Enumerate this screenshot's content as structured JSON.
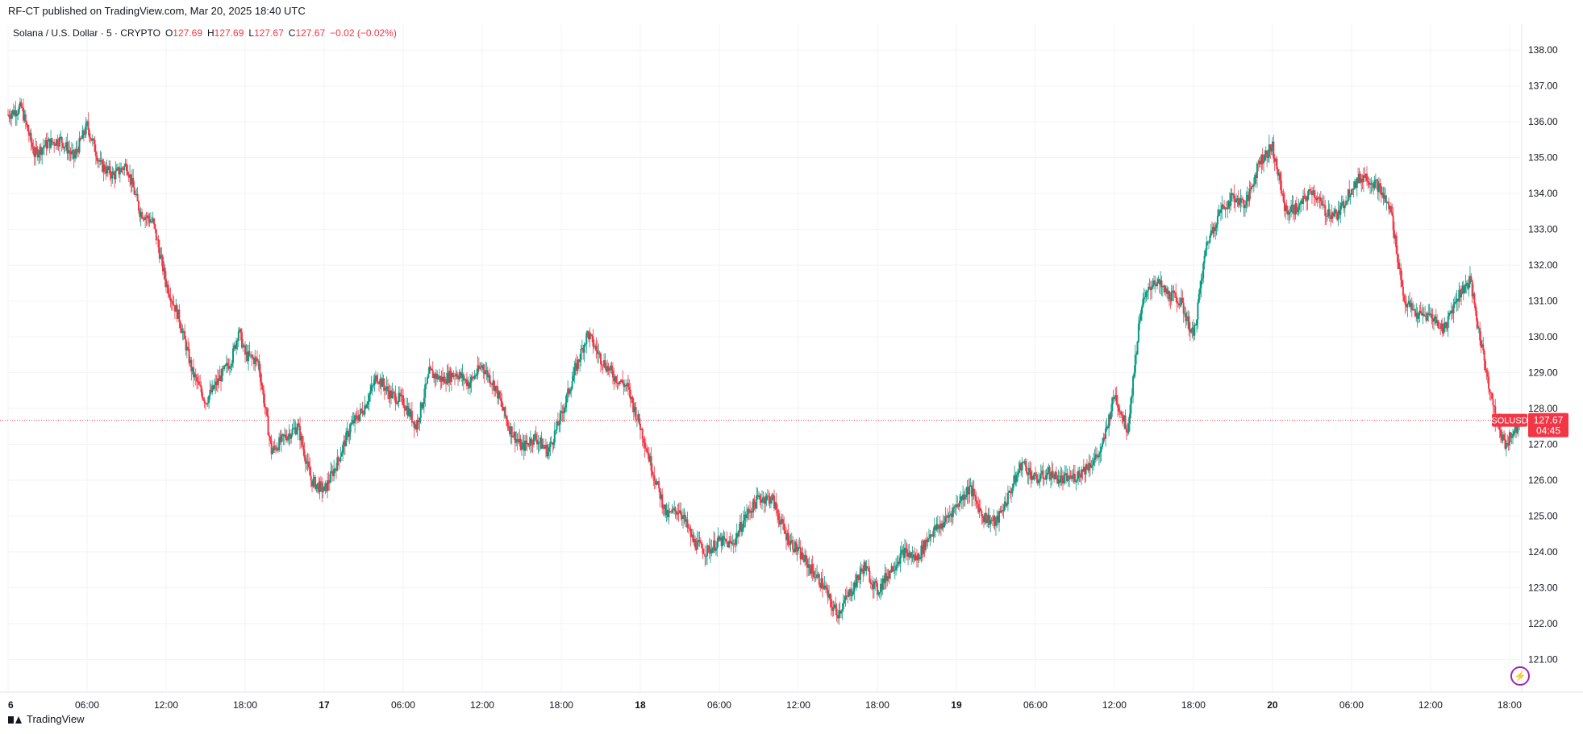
{
  "header": {
    "published": "RF-CT published on TradingView.com, Mar 20, 2025 18:40 UTC"
  },
  "legend": {
    "symbol": "Solana / U.S. Dollar · 5 · CRYPTO",
    "o_label": "O",
    "o_value": "127.69",
    "h_label": "H",
    "h_value": "127.69",
    "l_label": "L",
    "l_value": "127.67",
    "c_label": "C",
    "c_value": "127.67",
    "change": "−0.02 (−0.02%)"
  },
  "price_badge": {
    "ticker": "SOLUSD",
    "price": "127.67",
    "countdown": "04:45"
  },
  "footer": {
    "brand": "TradingView"
  },
  "colors": {
    "up": "#089981",
    "down": "#f23645",
    "grid": "#f0f3fa",
    "axis_text": "#131722",
    "price_line": "#f23645"
  },
  "chart_data": {
    "type": "candlestick",
    "interval": "5",
    "ylim": [
      120.4,
      138.5
    ],
    "y_ticks": [
      121,
      122,
      123,
      124,
      125,
      126,
      127,
      128,
      129,
      130,
      131,
      132,
      133,
      134,
      135,
      136,
      137,
      138
    ],
    "y_tick_labels": [
      "121.00",
      "122.00",
      "123.00",
      "124.00",
      "125.00",
      "126.00",
      "127.00",
      "128.00",
      "129.00",
      "130.00",
      "131.00",
      "132.00",
      "133.00",
      "134.00",
      "135.00",
      "136.00",
      "137.00",
      "138.00"
    ],
    "x_tick_labels": [
      "6",
      "06:00",
      "12:00",
      "18:00",
      "17",
      "06:00",
      "12:00",
      "18:00",
      "18",
      "06:00",
      "12:00",
      "18:00",
      "19",
      "06:00",
      "12:00",
      "18:00",
      "20",
      "06:00",
      "12:00",
      "18:00"
    ],
    "x_ticks_hours": [
      0,
      6,
      12,
      18,
      24,
      30,
      36,
      42,
      48,
      54,
      60,
      66,
      72,
      78,
      84,
      90,
      96,
      102,
      108,
      114
    ],
    "x_range_hours": [
      0,
      114.8
    ],
    "last_price": 127.67,
    "close_path": [
      [
        0,
        136.2
      ],
      [
        1,
        136.4
      ],
      [
        2,
        135.1
      ],
      [
        3,
        135.4
      ],
      [
        4,
        135.5
      ],
      [
        5,
        135.0
      ],
      [
        6,
        135.9
      ],
      [
        7,
        134.8
      ],
      [
        8,
        134.5
      ],
      [
        9,
        134.8
      ],
      [
        10,
        133.5
      ],
      [
        11,
        133.2
      ],
      [
        12,
        131.5
      ],
      [
        13,
        130.5
      ],
      [
        14,
        129.0
      ],
      [
        15,
        128.2
      ],
      [
        16,
        128.8
      ],
      [
        17,
        129.4
      ],
      [
        17.5,
        130.2
      ],
      [
        18,
        129.5
      ],
      [
        19,
        129.3
      ],
      [
        20,
        126.8
      ],
      [
        21,
        127.2
      ],
      [
        22,
        127.5
      ],
      [
        23,
        126.0
      ],
      [
        24,
        125.7
      ],
      [
        25,
        126.5
      ],
      [
        26,
        127.5
      ],
      [
        27,
        128.0
      ],
      [
        28,
        128.9
      ],
      [
        29,
        128.4
      ],
      [
        30,
        128.2
      ],
      [
        31,
        127.5
      ],
      [
        32,
        129.0
      ],
      [
        33,
        128.8
      ],
      [
        34,
        129.0
      ],
      [
        35,
        128.7
      ],
      [
        36,
        129.2
      ],
      [
        37,
        128.6
      ],
      [
        38,
        127.5
      ],
      [
        39,
        126.9
      ],
      [
        40,
        127.2
      ],
      [
        41,
        126.8
      ],
      [
        42,
        127.8
      ],
      [
        43,
        129.0
      ],
      [
        44,
        130.1
      ],
      [
        45,
        129.4
      ],
      [
        46,
        128.9
      ],
      [
        47,
        128.6
      ],
      [
        48,
        127.5
      ],
      [
        49,
        126.2
      ],
      [
        50,
        125.0
      ],
      [
        51,
        125.2
      ],
      [
        52,
        124.3
      ],
      [
        53,
        124.0
      ],
      [
        54,
        124.3
      ],
      [
        55,
        124.2
      ],
      [
        56,
        125.0
      ],
      [
        57,
        125.5
      ],
      [
        58,
        125.5
      ],
      [
        59,
        124.5
      ],
      [
        60,
        124.0
      ],
      [
        61,
        123.5
      ],
      [
        62,
        123.0
      ],
      [
        62.5,
        122.5
      ],
      [
        63,
        122.3
      ],
      [
        64,
        122.9
      ],
      [
        65,
        123.6
      ],
      [
        66,
        122.9
      ],
      [
        67,
        123.5
      ],
      [
        68,
        124.0
      ],
      [
        69,
        123.8
      ],
      [
        70,
        124.5
      ],
      [
        71,
        124.8
      ],
      [
        72,
        125.3
      ],
      [
        73,
        125.8
      ],
      [
        74,
        125.0
      ],
      [
        75,
        124.8
      ],
      [
        76,
        125.6
      ],
      [
        77,
        126.5
      ],
      [
        78,
        126.0
      ],
      [
        79,
        126.2
      ],
      [
        80,
        126.0
      ],
      [
        81,
        126.1
      ],
      [
        82,
        126.4
      ],
      [
        83,
        126.8
      ],
      [
        84,
        128.4
      ],
      [
        85,
        127.4
      ],
      [
        86,
        130.8
      ],
      [
        87,
        131.6
      ],
      [
        88,
        131.2
      ],
      [
        89,
        131.0
      ],
      [
        90,
        130.0
      ],
      [
        91,
        132.6
      ],
      [
        92,
        133.5
      ],
      [
        93,
        133.9
      ],
      [
        94,
        133.7
      ],
      [
        95,
        134.9
      ],
      [
        96,
        135.3
      ],
      [
        97,
        133.5
      ],
      [
        98,
        133.6
      ],
      [
        99,
        134.1
      ],
      [
        100,
        133.5
      ],
      [
        101,
        133.4
      ],
      [
        102,
        134.2
      ],
      [
        103,
        134.5
      ],
      [
        104,
        134.2
      ],
      [
        105,
        133.5
      ],
      [
        106,
        131.0
      ],
      [
        107,
        130.6
      ],
      [
        108,
        130.6
      ],
      [
        109,
        130.2
      ],
      [
        110,
        131.1
      ],
      [
        111,
        131.6
      ],
      [
        111.5,
        130.5
      ],
      [
        112,
        129.5
      ],
      [
        113,
        127.6
      ],
      [
        113.7,
        127.0
      ],
      [
        114.8,
        127.67
      ]
    ]
  }
}
